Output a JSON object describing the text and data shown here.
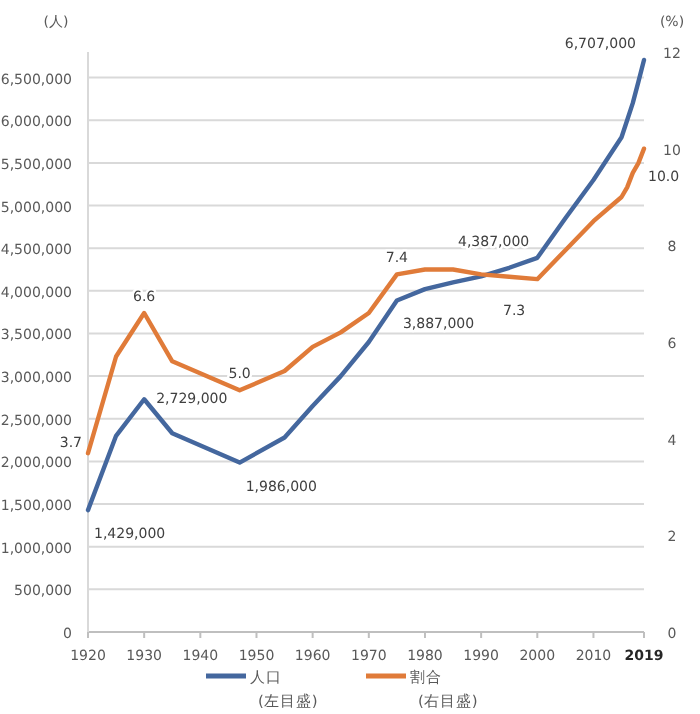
{
  "chart_data": {
    "type": "line",
    "x": [
      1920,
      1925,
      1930,
      1935,
      1947,
      1955,
      1960,
      1965,
      1970,
      1975,
      1980,
      1985,
      1990,
      1995,
      2000,
      2005,
      2010,
      2015,
      2016,
      2017,
      2018,
      2019
    ],
    "xlim": [
      1920,
      2019
    ],
    "xticks": [
      1920,
      1930,
      1940,
      1950,
      1960,
      1970,
      1980,
      1990,
      2000,
      2010,
      2019
    ],
    "ylim": [
      0,
      6800000
    ],
    "yticks": [
      {
        "value": 0,
        "label": "0"
      },
      {
        "value": 500000,
        "label": "500,000"
      },
      {
        "value": 1000000,
        "label": "1,000,000"
      },
      {
        "value": 1500000,
        "label": "1,500,000"
      },
      {
        "value": 2000000,
        "label": "2,000,000"
      },
      {
        "value": 2500000,
        "label": "2,500,000"
      },
      {
        "value": 3000000,
        "label": "3,000,000"
      },
      {
        "value": 3500000,
        "label": "3,500,000"
      },
      {
        "value": 4000000,
        "label": "4,000,000"
      },
      {
        "value": 4500000,
        "label": "4,500,000"
      },
      {
        "value": 5000000,
        "label": "5,000,000"
      },
      {
        "value": 5500000,
        "label": "5,500,000"
      },
      {
        "value": 6000000,
        "label": "6,000,000"
      },
      {
        "value": 6500000,
        "label": "6,500,000"
      }
    ],
    "y2lim": [
      0,
      12
    ],
    "y2ticks": [
      0,
      2,
      4,
      6,
      8,
      10,
      12
    ],
    "ylabel": "(人)",
    "y2label": "(%)",
    "grid": "y",
    "legend": "bottom",
    "marker": "none",
    "line_style": "solid",
    "series": [
      {
        "name": "人口\n(左目盛)",
        "color": "#44679e",
        "values": [
          1429000,
          2300000,
          2729000,
          2330000,
          1986000,
          2280000,
          2650000,
          3000000,
          3400000,
          3887000,
          4020000,
          4100000,
          4170000,
          4270000,
          4387000,
          4850000,
          5300000,
          5800000,
          6000000,
          6200000,
          6450000,
          6707000
        ],
        "value_labels": [
          "1,429,000",
          null,
          "2,729,000",
          null,
          "1,986,000",
          null,
          null,
          null,
          null,
          "3,887,000",
          null,
          null,
          null,
          null,
          "4,387,000",
          null,
          null,
          null,
          null,
          null,
          null,
          "6,707,000"
        ]
      },
      {
        "name": "割合\n(右目盛)",
        "color": "#e07b39",
        "axis": "y2",
        "values": [
          3.7,
          5.7,
          6.6,
          5.6,
          5.0,
          5.4,
          5.9,
          6.2,
          6.6,
          7.4,
          7.5,
          7.5,
          7.4,
          7.35,
          7.3,
          7.9,
          8.5,
          9.0,
          9.2,
          9.5,
          9.7,
          10.0
        ],
        "value_labels": [
          "3.7",
          null,
          "6.6",
          null,
          "5.0",
          null,
          null,
          null,
          null,
          "7.4",
          null,
          null,
          null,
          null,
          "7.3",
          null,
          null,
          null,
          null,
          null,
          null,
          "10.0"
        ]
      }
    ]
  }
}
